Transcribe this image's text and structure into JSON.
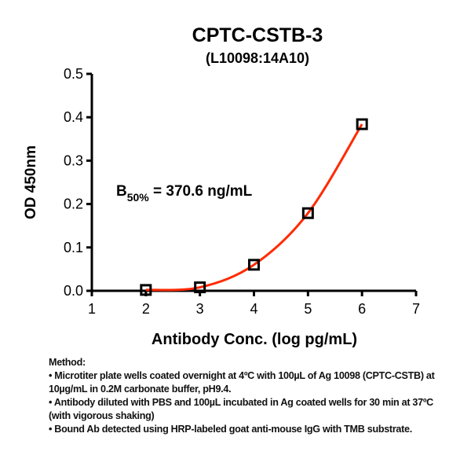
{
  "chart_data": {
    "type": "scatter",
    "title": "CPTC-CSTB-3",
    "subtitle": "(L10098:14A10)",
    "xlabel": "Antibody Conc. (log pg/mL)",
    "ylabel": "OD 450nm",
    "xlim": [
      1,
      7
    ],
    "ylim": [
      0,
      0.5
    ],
    "xticks": [
      "1",
      "2",
      "3",
      "4",
      "5",
      "6",
      "7"
    ],
    "yticks": [
      "0.0",
      "0.1",
      "0.2",
      "0.3",
      "0.4",
      "0.5"
    ],
    "grid": false,
    "x": [
      2,
      3,
      4,
      5,
      6
    ],
    "y": [
      0.002,
      0.008,
      0.06,
      0.179,
      0.384
    ],
    "marker": "open-square",
    "fit_curve": "sigmoidal fit",
    "fit_color": "#ff2a00",
    "annotation": {
      "prefix": "B",
      "subscript": "50%",
      "text": " = 370.6 ng/mL"
    }
  },
  "method": {
    "heading": "Method:",
    "bullets": [
      "• Microtiter plate wells coated overnight at 4ºC  with 100µL of Ag 10098 (CPTC-CSTB) at 10µg/mL in 0.2M carbonate buffer, pH9.4.",
      "• Antibody diluted with PBS and 100µL incubated in Ag coated wells for 30 min at 37ºC (with vigorous shaking)",
      "• Bound Ab detected using HRP-labeled goat anti-mouse IgG with TMB substrate."
    ]
  }
}
